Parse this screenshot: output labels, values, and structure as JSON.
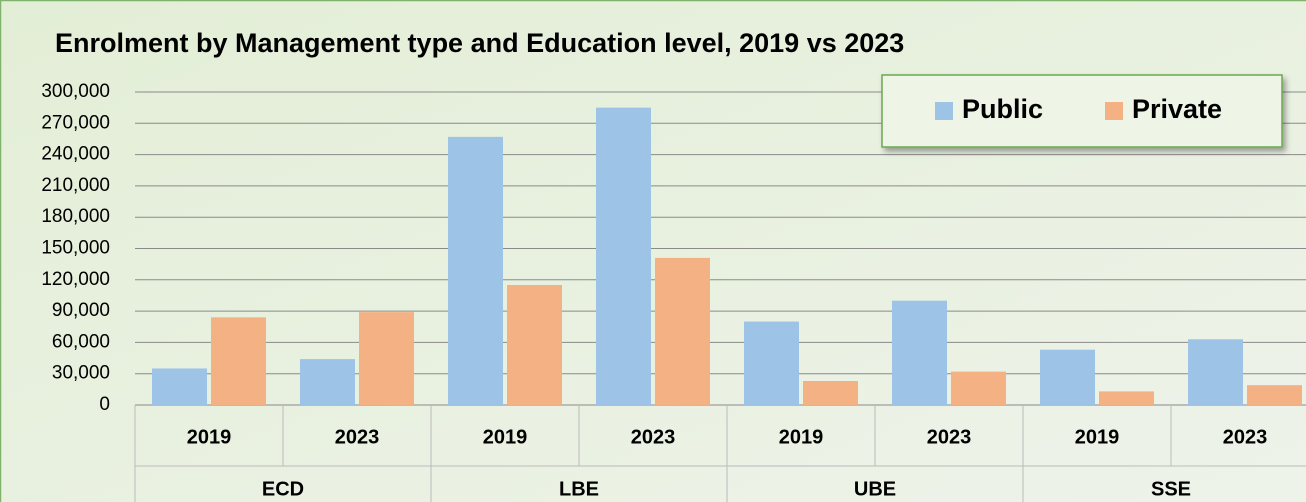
{
  "chart_data": {
    "type": "bar",
    "title": "Enrolment by Management type and Education level, 2019 vs 2023",
    "categories": [
      "2019",
      "2023",
      "2019",
      "2023",
      "2019",
      "2023",
      "2019",
      "2023"
    ],
    "groups": [
      "ECD",
      "LBE",
      "UBE",
      "SSE"
    ],
    "series": [
      {
        "name": "Public",
        "color": "#9dc3e6",
        "values": [
          35000,
          44000,
          257000,
          285000,
          80000,
          100000,
          53000,
          63000
        ]
      },
      {
        "name": "Private",
        "color": "#f4b183",
        "values": [
          84000,
          89000,
          115000,
          141000,
          23000,
          32000,
          13000,
          19000
        ]
      }
    ],
    "ylim": [
      0,
      300000
    ],
    "yticks": [
      0,
      {
        "value": 30000,
        "label": "30,000"
      },
      {
        "value": 60000,
        "label": "60,000"
      },
      {
        "value": 90000,
        "label": "90,000"
      },
      {
        "value": 120000,
        "label": "120,000"
      },
      {
        "value": 150000,
        "label": "150,000"
      },
      {
        "value": 180000,
        "label": "180,000"
      },
      {
        "value": 210000,
        "label": "210,000"
      },
      {
        "value": 240000,
        "label": "240,000"
      },
      {
        "value": 270000,
        "label": "270,000"
      },
      {
        "value": 300000,
        "label": "300,000"
      }
    ],
    "grid": true,
    "legend": "top-right"
  }
}
